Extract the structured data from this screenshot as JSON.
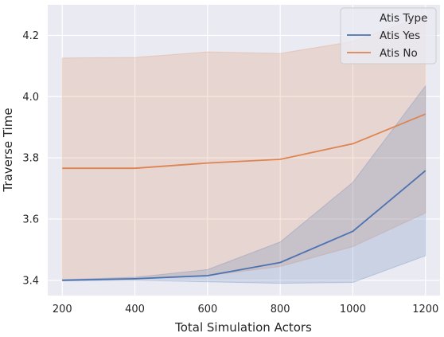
{
  "chart_data": {
    "type": "line",
    "xlabel": "Total Simulation Actors",
    "ylabel": "Traverse Time",
    "x": [
      200,
      400,
      600,
      800,
      1000,
      1200
    ],
    "xticks": [
      "200",
      "400",
      "600",
      "800",
      "1000",
      "1200"
    ],
    "yticks": [
      "3.4",
      "3.6",
      "3.8",
      "4.0",
      "4.2"
    ],
    "xlim": [
      160,
      1240
    ],
    "ylim": [
      3.35,
      4.3
    ],
    "grid": true,
    "legend": {
      "title": "Atis Type",
      "placement": "top-right"
    },
    "series": [
      {
        "name": "Atis Yes",
        "color": "#4c72b0",
        "values": [
          3.4,
          3.405,
          3.415,
          3.458,
          3.56,
          3.758
        ],
        "ci_low": [
          3.398,
          3.4,
          3.395,
          3.39,
          3.393,
          3.48
        ],
        "ci_high": [
          3.402,
          3.41,
          3.435,
          3.525,
          3.72,
          4.035
        ]
      },
      {
        "name": "Atis No",
        "color": "#dd8452",
        "values": [
          3.766,
          3.766,
          3.783,
          3.795,
          3.846,
          3.943
        ],
        "ci_low": [
          3.4,
          3.405,
          3.415,
          3.445,
          3.51,
          3.62
        ],
        "ci_high": [
          4.126,
          4.128,
          4.146,
          4.141,
          4.18,
          4.265
        ]
      }
    ]
  }
}
